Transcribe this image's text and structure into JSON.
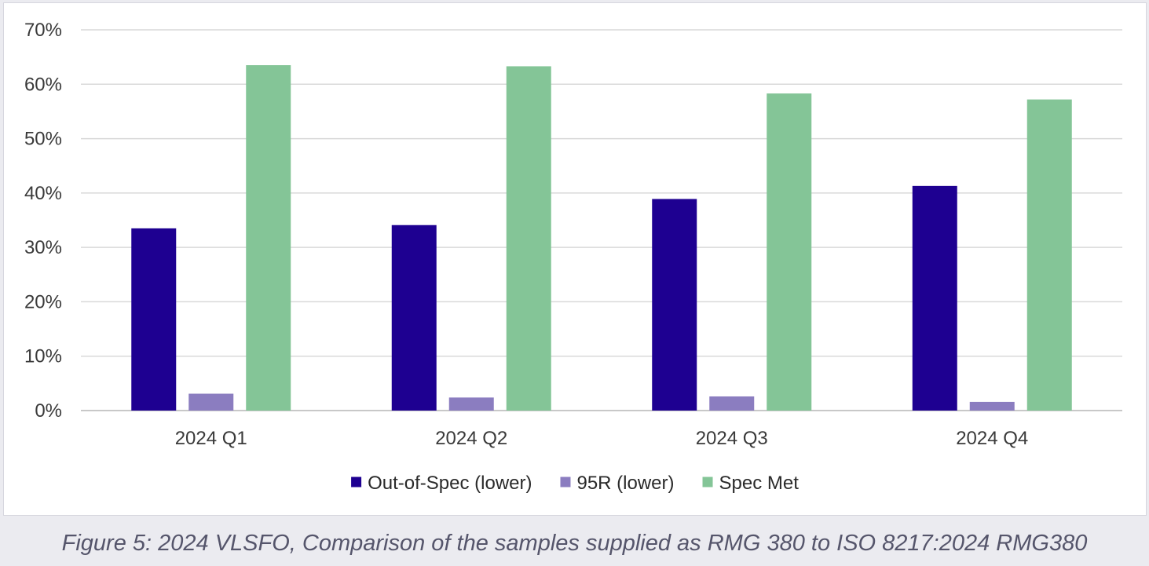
{
  "caption": "Figure 5: 2024 VLSFO, Comparison of the samples supplied as RMG 380 to ISO 8217:2024 RMG380",
  "chart_data": {
    "type": "bar",
    "title": "",
    "xlabel": "",
    "ylabel": "",
    "categories": [
      "2024 Q1",
      "2024 Q2",
      "2024 Q3",
      "2024 Q4"
    ],
    "series": [
      {
        "name": "Out-of-Spec (lower)",
        "color": "#1e0091",
        "values": [
          33.5,
          34.1,
          38.9,
          41.3
        ]
      },
      {
        "name": "95R (lower)",
        "color": "#8b7dc0",
        "values": [
          3.1,
          2.4,
          2.6,
          1.6
        ]
      },
      {
        "name": "Spec Met",
        "color": "#84c597",
        "values": [
          63.5,
          63.3,
          58.3,
          57.2
        ]
      }
    ],
    "ylim": [
      0,
      70
    ],
    "yticks": [
      0,
      10,
      20,
      30,
      40,
      50,
      60,
      70
    ],
    "ytick_labels": [
      "0%",
      "10%",
      "20%",
      "30%",
      "40%",
      "50%",
      "60%",
      "70%"
    ],
    "grid": true,
    "legend_position": "bottom",
    "gridline_color": "#d9d9d9",
    "axis_color": "#c8c8c8"
  }
}
